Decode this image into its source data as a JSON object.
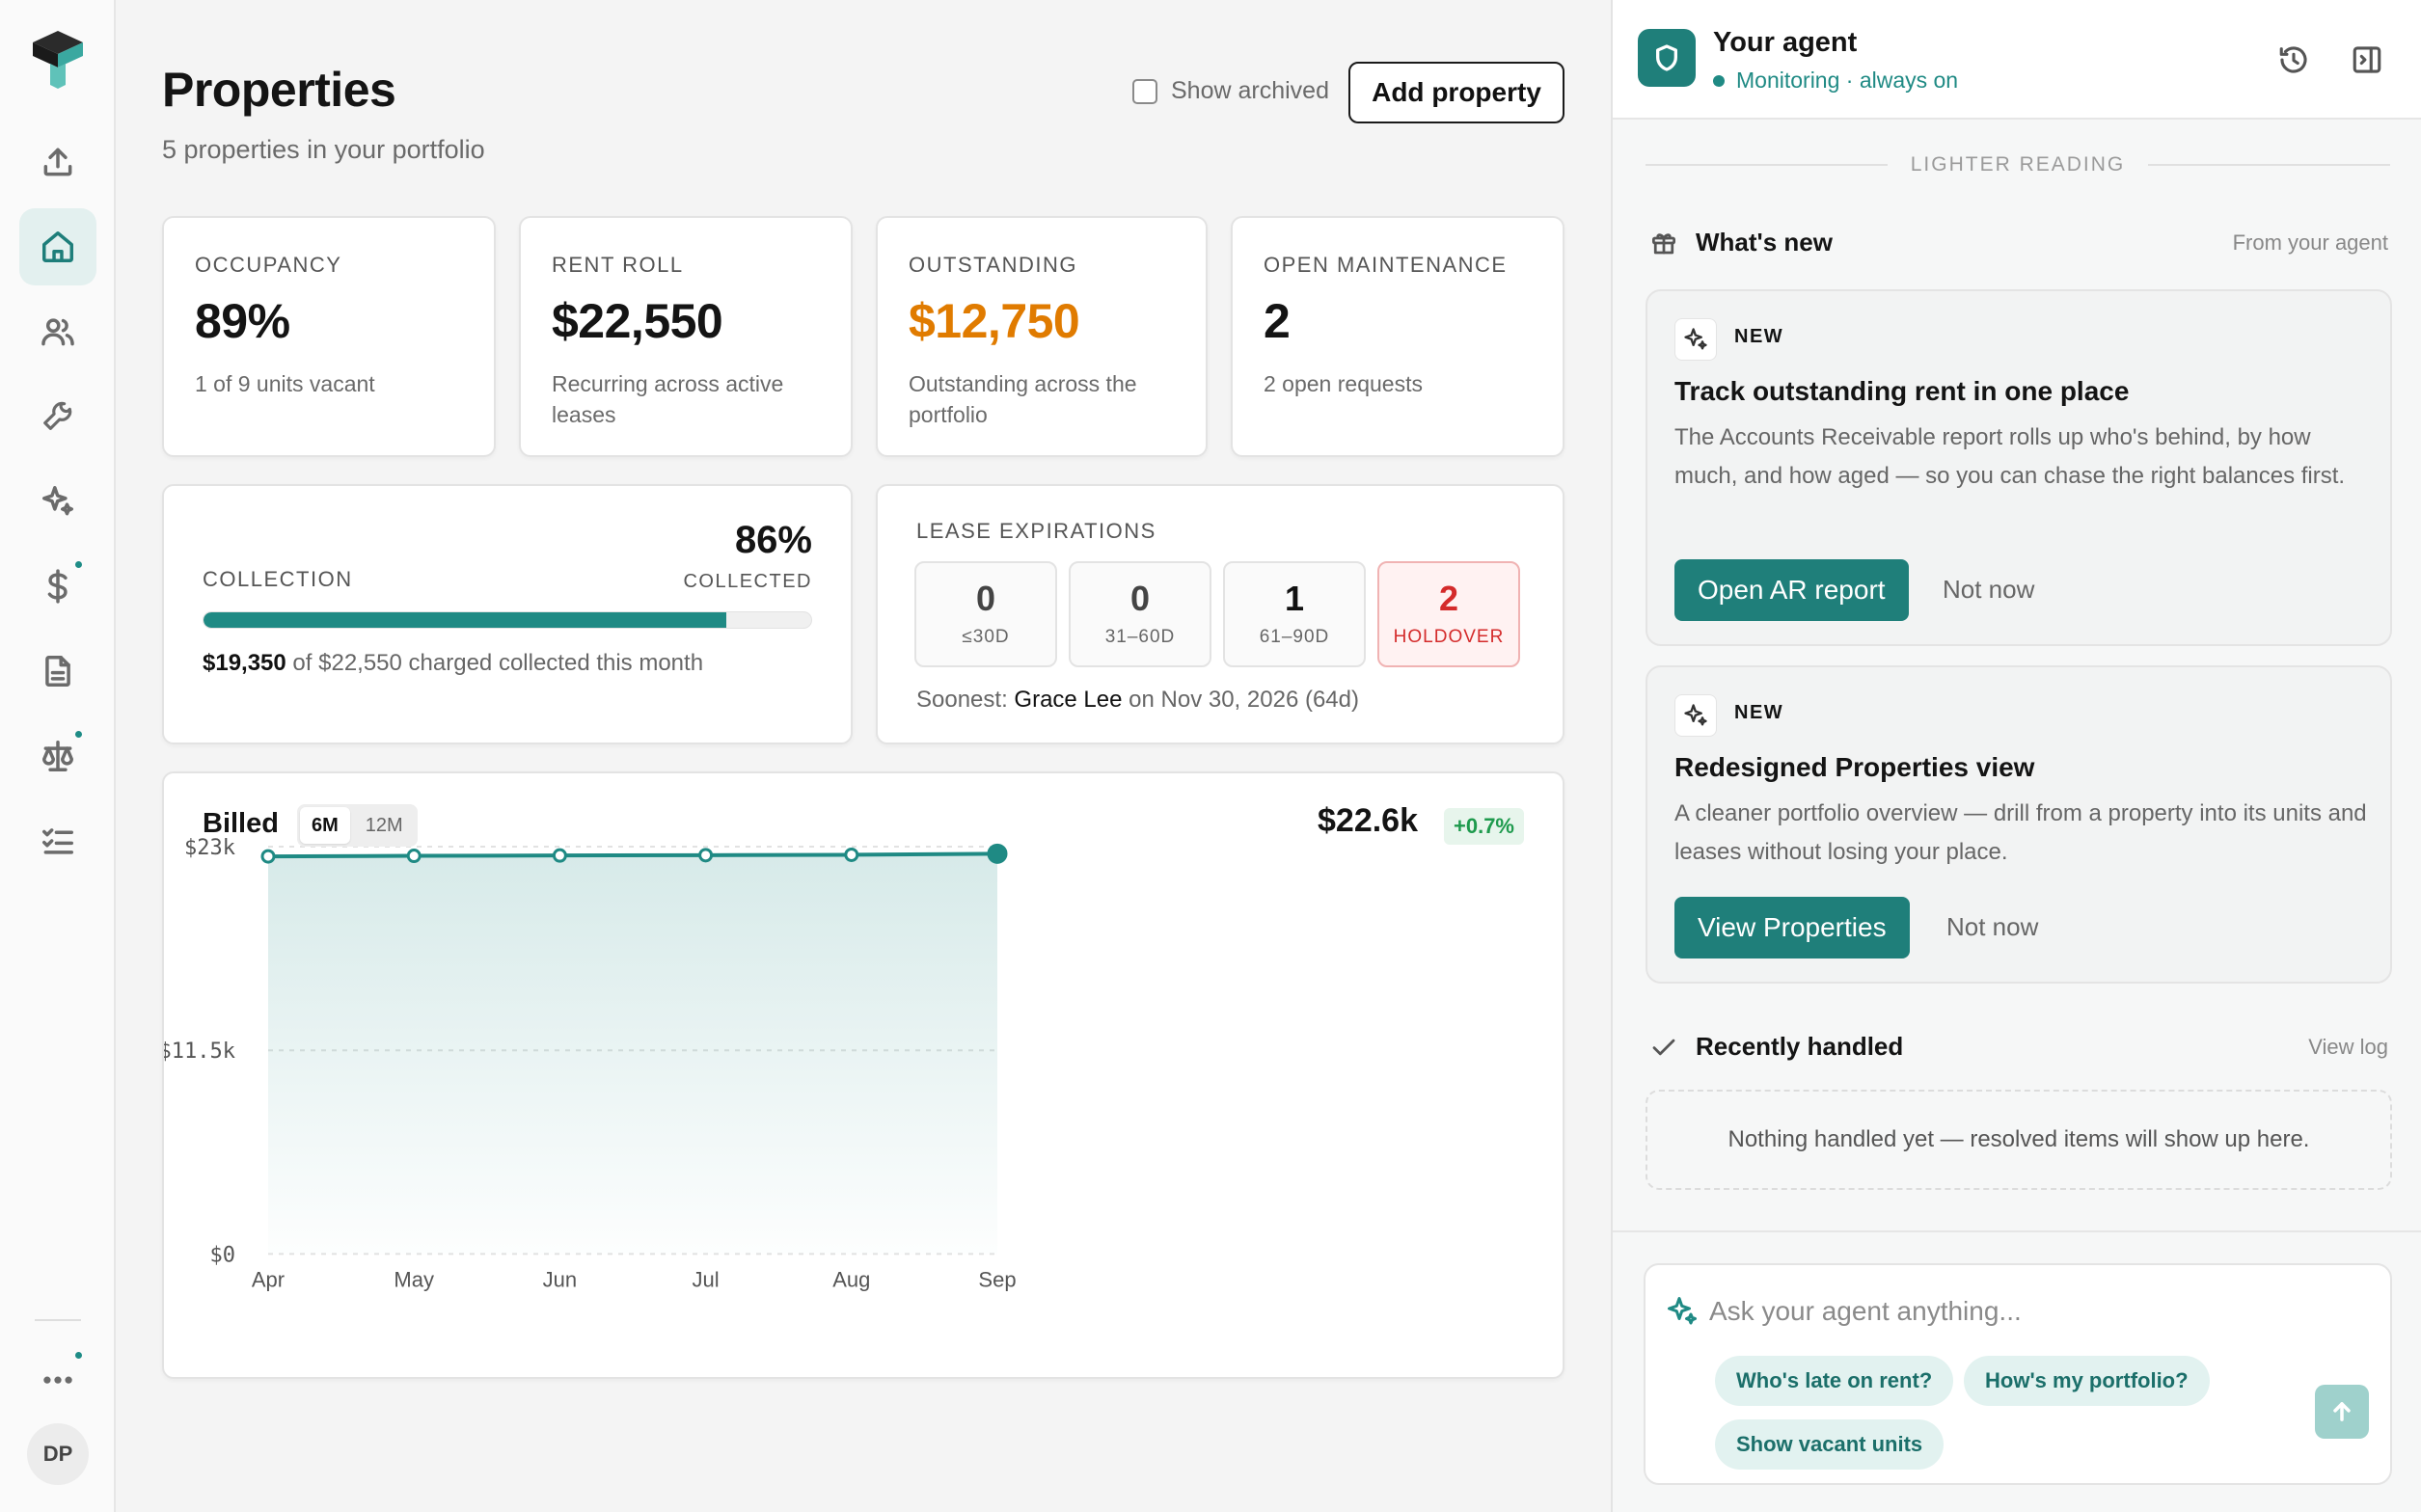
{
  "sidebar": {
    "logo": "logo-mark",
    "items": [
      {
        "name": "upload-icon",
        "active": false
      },
      {
        "name": "home-icon",
        "active": true
      },
      {
        "name": "people-icon",
        "active": false
      },
      {
        "name": "wrench-icon",
        "active": false
      },
      {
        "name": "sparkle-icon",
        "active": false
      },
      {
        "name": "dollar-icon",
        "active": false,
        "badge": true
      },
      {
        "name": "document-icon",
        "active": false
      },
      {
        "name": "scale-icon",
        "active": false,
        "badge": true
      },
      {
        "name": "checklist-icon",
        "active": false
      }
    ],
    "more_badge": true,
    "avatar_initials": "DP"
  },
  "header": {
    "title": "Properties",
    "subtitle": "5 properties in your portfolio",
    "show_archived_label": "Show archived",
    "add_button_label": "Add property"
  },
  "kpis": [
    {
      "label": "OCCUPANCY",
      "value": "89%",
      "desc": "1 of 9 units vacant"
    },
    {
      "label": "RENT ROLL",
      "value": "$22,550",
      "desc": "Recurring across active leases"
    },
    {
      "label": "OUTSTANDING",
      "value": "$12,750",
      "desc": "Outstanding across the portfolio",
      "warn": true
    },
    {
      "label": "OPEN MAINTENANCE",
      "value": "2",
      "desc": "2 open requests"
    }
  ],
  "collection": {
    "label": "COLLECTION",
    "percent_text": "86%",
    "percent_value": 86,
    "percent_label": "COLLECTED",
    "collected": "$19,350",
    "note_rest": " of $22,550 charged collected this month"
  },
  "lease_expirations": {
    "label": "LEASE EXPIRATIONS",
    "buckets": [
      {
        "count": "0",
        "range": "≤30D"
      },
      {
        "count": "0",
        "range": "31–60D"
      },
      {
        "count": "1",
        "range": "61–90D"
      },
      {
        "count": "2",
        "range": "HOLDOVER",
        "alert": true
      }
    ],
    "soonest_prefix": "Soonest: ",
    "soonest_name": "Grace Lee",
    "soonest_rest": " on Nov 30, 2026 (64d)"
  },
  "billed": {
    "title": "Billed",
    "ranges": [
      "6M",
      "12M"
    ],
    "active_range": "6M",
    "total": "$22.6k",
    "delta": "+0.7%"
  },
  "chart_data": {
    "type": "area",
    "title": "Billed",
    "categories": [
      "Apr",
      "May",
      "Jun",
      "Jul",
      "Aug",
      "Sep"
    ],
    "series": [
      {
        "values": [
          22450,
          22480,
          22500,
          22520,
          22540,
          22600
        ]
      }
    ],
    "ylim": [
      0,
      23000
    ],
    "yticks": [
      0,
      11500,
      23000
    ],
    "ytick_labels": [
      "$0",
      "$11.5k",
      "$23k"
    ],
    "grid": true,
    "color": "#1f8a84"
  },
  "agent": {
    "name": "Your agent",
    "status": "Monitoring · always on",
    "section_divider": "LIGHTER READING",
    "whats_new_title": "What's new",
    "whats_new_source": "From your agent",
    "news": [
      {
        "badge": "NEW",
        "title": "Track outstanding rent in one place",
        "body": "The Accounts Receivable report rolls up who's behind, by how much, and how aged — so you can chase the right balances first.",
        "cta": "Open AR report",
        "dismiss": "Not now"
      },
      {
        "badge": "NEW",
        "title": "Redesigned Properties view",
        "body": "A cleaner portfolio overview — drill from a property into its units and leases without losing your place.",
        "cta": "View Properties",
        "dismiss": "Not now"
      }
    ],
    "recent_title": "Recently handled",
    "recent_link": "View log",
    "recent_empty": "Nothing handled yet — resolved items will show up here.",
    "input_placeholder": "Ask your agent anything...",
    "suggestions": [
      "Who's late on rent?",
      "How's my portfolio?",
      "Show vacant units"
    ]
  }
}
